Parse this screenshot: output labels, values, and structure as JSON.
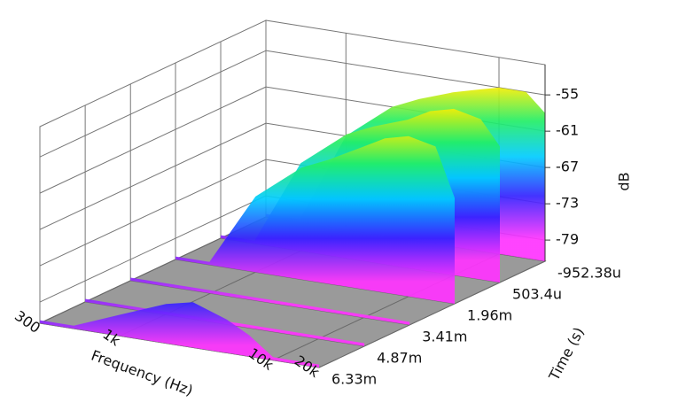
{
  "chart_data": {
    "type": "waterfall3d",
    "xlabel": "Frequency (Hz)",
    "tlabel": "Time (s)",
    "zlabel": "dB",
    "xscale": "log",
    "xlim": [
      300,
      20000
    ],
    "xticks": [
      {
        "value": 300,
        "label": "300"
      },
      {
        "value": 1000,
        "label": "1k"
      },
      {
        "value": 10000,
        "label": "10k"
      },
      {
        "value": 20000,
        "label": "20k"
      }
    ],
    "tlim": [
      -0.00095238,
      0.00633
    ],
    "tticks": [
      {
        "value": -0.00095238,
        "label": "-952.38u"
      },
      {
        "value": 0.0005034,
        "label": "503.4u"
      },
      {
        "value": 0.00196,
        "label": "1.96m"
      },
      {
        "value": 0.00341,
        "label": "3.41m"
      },
      {
        "value": 0.00487,
        "label": "4.87m"
      },
      {
        "value": 0.00633,
        "label": "6.33m"
      }
    ],
    "zlim": [
      -82.5,
      -50
    ],
    "zticks": [
      -55,
      -61,
      -67,
      -73,
      -79
    ],
    "x": [
      300,
      500,
      1000,
      2000,
      3000,
      5000,
      7000,
      10000,
      15000,
      20000
    ],
    "slices": [
      {
        "time": -0.00095238,
        "values": [
          -82,
          -82,
          -67,
          -61,
          -59,
          -57,
          -56,
          -55,
          -55,
          -58
        ]
      },
      {
        "time": 0.0005034,
        "values": [
          -82,
          -82,
          -68,
          -62,
          -60,
          -58,
          -56,
          -55,
          -56,
          -60
        ]
      },
      {
        "time": 0.00196,
        "values": [
          -82,
          -82,
          -70,
          -64,
          -62,
          -59,
          -57,
          -56,
          -57,
          -65
        ]
      },
      {
        "time": 0.00341,
        "values": [
          -82,
          -82,
          -82,
          -82,
          -82,
          -82,
          -82,
          -82,
          -82,
          -82
        ]
      },
      {
        "time": 0.00487,
        "values": [
          -82,
          -82,
          -82,
          -82,
          -82,
          -82,
          -82,
          -82,
          -82,
          -82
        ]
      },
      {
        "time": 0.00633,
        "values": [
          -82,
          -82,
          -79,
          -76,
          -75,
          -77,
          -79,
          -82,
          -82,
          -82
        ]
      }
    ],
    "grid": true,
    "floor_color": "#9a9a9a"
  }
}
